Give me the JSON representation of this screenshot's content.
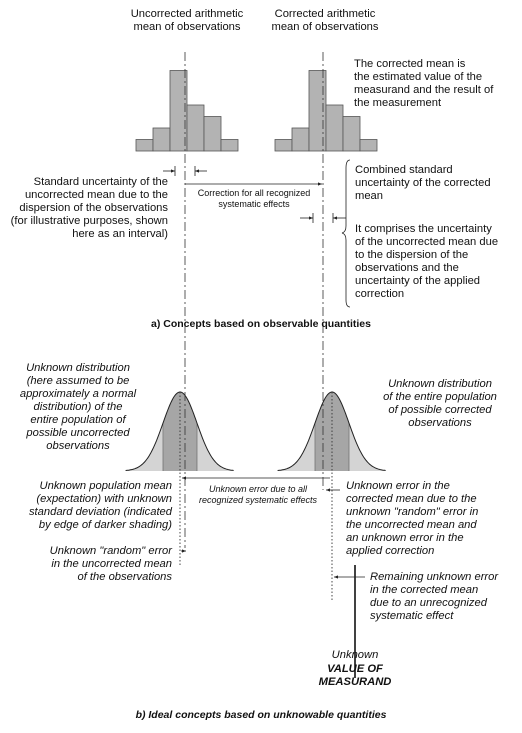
{
  "part_a": {
    "label_uncorrected_mean": "Uncorrected arithmetic\nmean of observations",
    "label_corrected_mean": "Corrected arithmetic\nmean of observations",
    "note_corrected_mean": "The corrected mean is\nthe estimated value of the\nmeasurand and the result of\nthe measurement",
    "note_standard_uncertainty": "Standard uncertainty of the\nuncorrected mean due to the\ndispersion of the observations\n(for illustrative purposes, shown\nhere as an interval)",
    "note_correction": "Correction for all recognized\nsystematic effects",
    "note_combined_uncertainty": "Combined standard\nuncertainty of the corrected\nmean",
    "note_comprises": "It comprises the uncertainty\nof the uncorrected mean due\nto the dispersion of the\nobservations and the\nuncertainty of the applied\ncorrection",
    "caption": "a)  Concepts based on observable quantities",
    "histogram_bars": [
      1,
      2,
      7,
      4,
      3,
      1
    ]
  },
  "part_b": {
    "note_unknown_distribution_left": "Unknown distribution\n(here assumed to be\napproximately a normal\ndistribution) of the\nentire population of\npossible uncorrected\nobservations",
    "note_unknown_distribution_right": "Unknown distribution\nof the entire population\nof possible corrected\nobservations",
    "note_population_mean": "Unknown population mean\n(expectation) with unknown\nstandard deviation (indicated\nby edge of darker shading)",
    "note_unknown_error_systematic": "Unknown error due to all\nrecognized systematic effects",
    "note_unknown_error_corrected": "Unknown error in the\ncorrected mean due to the\nunknown \"random\" error in\nthe uncorrected mean and\nan unknown error in the\napplied correction",
    "note_random_error": "Unknown \"random\" error\nin the uncorrected mean\nof the observations",
    "note_remaining_error": "Remaining unknown error\nin the corrected mean\ndue to an unrecognized\nsystematic effect",
    "label_unknown": "Unknown",
    "label_value_of_measurand": "VALUE OF\nMEASURAND",
    "caption": "b)  Ideal concepts based on unknowable quantities"
  },
  "colors": {
    "bar_fill": "#b3b3b3",
    "light_shade": "#d4d4d4",
    "dark_shade": "#a6a6a6",
    "line": "#222222"
  }
}
